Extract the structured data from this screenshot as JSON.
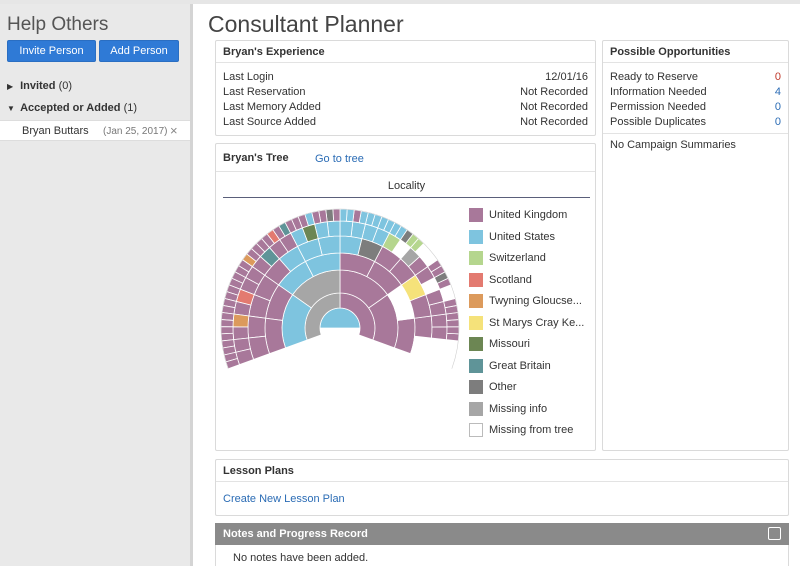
{
  "sidebar": {
    "title": "Help Others",
    "invite_label": "Invite Person",
    "add_label": "Add Person",
    "invited_label": "Invited",
    "invited_count": "(0)",
    "accepted_label": "Accepted or Added",
    "accepted_count": "(1)",
    "person": {
      "name": "Bryan Buttars",
      "date": "(Jan 25, 2017)",
      "remove": "×"
    }
  },
  "page": {
    "title": "Consultant Planner"
  },
  "experience": {
    "title": "Bryan's Experience",
    "rows": [
      {
        "label": "Last Login",
        "value": "12/01/16"
      },
      {
        "label": "Last Reservation",
        "value": "Not Recorded"
      },
      {
        "label": "Last Memory Added",
        "value": "Not Recorded"
      },
      {
        "label": "Last Source Added",
        "value": "Not Recorded"
      }
    ]
  },
  "opportunities": {
    "title": "Possible Opportunities",
    "rows": [
      {
        "label": "Ready to Reserve",
        "value": "0"
      },
      {
        "label": "Information Needed",
        "value": "4"
      },
      {
        "label": "Permission Needed",
        "value": "0"
      },
      {
        "label": "Possible Duplicates",
        "value": "0"
      }
    ],
    "campaign_text": "No Campaign Summaries"
  },
  "tree": {
    "title": "Bryan's Tree",
    "go_link": "Go to tree",
    "view_label": "Locality",
    "legend": [
      {
        "label": "United Kingdom",
        "color": "#a8789a"
      },
      {
        "label": "United States",
        "color": "#7ec4df"
      },
      {
        "label": "Switzerland",
        "color": "#b5d68e"
      },
      {
        "label": "Scotland",
        "color": "#e37a70"
      },
      {
        "label": "Twyning Gloucse...",
        "color": "#dc9a5c"
      },
      {
        "label": "St Marys Cray Ke...",
        "color": "#f5e27a"
      },
      {
        "label": "Missouri",
        "color": "#6c8653"
      },
      {
        "label": "Great Britain",
        "color": "#5f9498"
      },
      {
        "label": "Other",
        "color": "#7d7d7d"
      },
      {
        "label": "Missing info",
        "color": "#a6a6a6"
      },
      {
        "label": "Missing from tree",
        "color": "#ffffff"
      }
    ]
  },
  "lesson_plans": {
    "title": "Lesson Plans",
    "create_link": "Create New Lesson Plan"
  },
  "notes": {
    "title": "Notes and Progress Record",
    "empty_text": "No notes have been added."
  }
}
